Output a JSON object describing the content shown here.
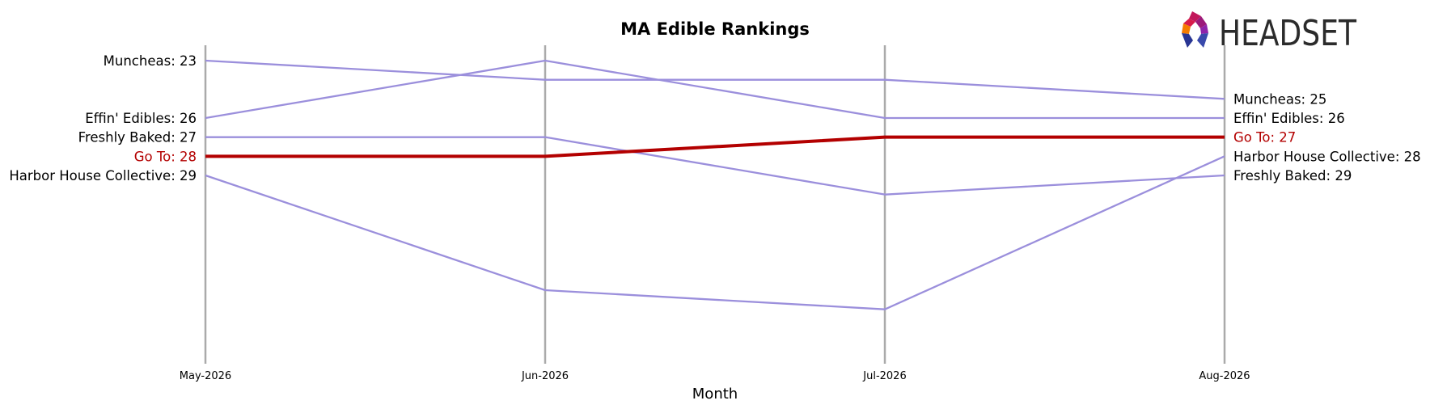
{
  "chart_data": {
    "type": "line",
    "title": "MA Edible Rankings",
    "xlabel": "Month",
    "ylabel": "",
    "categories": [
      "May-2026",
      "Jun-2026",
      "Jul-2026",
      "Aug-2026"
    ],
    "y_inverted": true,
    "ylim": [
      23,
      38
    ],
    "grid": false,
    "series": [
      {
        "name": "Muncheas",
        "values": [
          23,
          24,
          24,
          25
        ],
        "color": "#9b8fdc",
        "highlight": false
      },
      {
        "name": "Effin' Edibles",
        "values": [
          26,
          23,
          26,
          26
        ],
        "color": "#9b8fdc",
        "highlight": false
      },
      {
        "name": "Freshly Baked",
        "values": [
          27,
          27,
          30,
          29
        ],
        "color": "#9b8fdc",
        "highlight": false
      },
      {
        "name": "Go To",
        "values": [
          28,
          28,
          27,
          27
        ],
        "color": "#b30000",
        "highlight": true
      },
      {
        "name": "Harbor House Collective",
        "values": [
          29,
          35,
          36,
          28
        ],
        "color": "#9b8fdc",
        "highlight": false
      }
    ],
    "left_labels": [
      {
        "text": "Muncheas: 23",
        "rank": 23,
        "highlight": false
      },
      {
        "text": "Effin' Edibles: 26",
        "rank": 26,
        "highlight": false
      },
      {
        "text": "Freshly Baked: 27",
        "rank": 27,
        "highlight": false
      },
      {
        "text": "Go To: 28",
        "rank": 28,
        "highlight": true
      },
      {
        "text": "Harbor House Collective: 29",
        "rank": 29,
        "highlight": false
      }
    ],
    "right_labels": [
      {
        "text": "Muncheas: 25",
        "rank": 25,
        "highlight": false
      },
      {
        "text": "Effin' Edibles: 26",
        "rank": 26,
        "highlight": false
      },
      {
        "text": "Go To: 27",
        "rank": 27,
        "highlight": true
      },
      {
        "text": "Harbor House Collective: 28",
        "rank": 28,
        "highlight": false
      },
      {
        "text": "Freshly Baked: 29",
        "rank": 29,
        "highlight": false
      }
    ],
    "colors": {
      "highlight": "#b30000",
      "normal_line": "#9b8fdc",
      "normal_text": "#000000",
      "axis": "#aaaaaa"
    }
  },
  "logo": {
    "text": "HEADSET",
    "icon": "headset-logo-icon"
  }
}
